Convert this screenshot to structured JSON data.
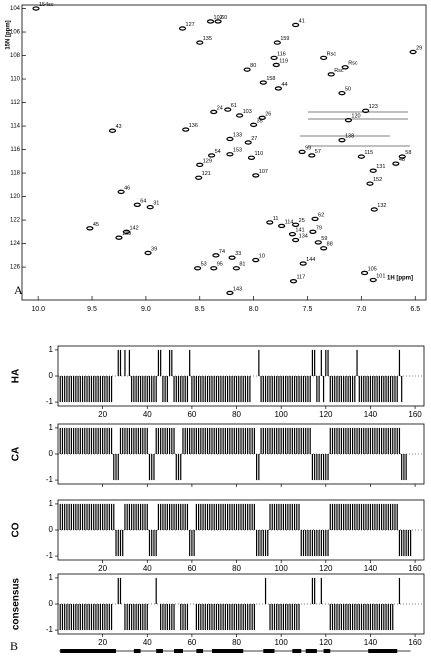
{
  "chart_data": [
    {
      "type": "scatter",
      "panel_label": "A",
      "ylabel": "15N [ppm]",
      "xlabel": "1H [ppm]",
      "xlim": [
        10.15,
        6.4
      ],
      "ylim": [
        103.7,
        128.8
      ],
      "xticks": [
        {
          "value": 10,
          "label": "10.0"
        },
        9.5,
        {
          "value": 9,
          "label": "9.0"
        },
        8.5,
        {
          "value": 8,
          "label": "8.0"
        },
        7.5,
        {
          "value": 7,
          "label": "7.0"
        },
        6.5
      ],
      "yticks": [
        104,
        106,
        108,
        110,
        112,
        114,
        116,
        118,
        120,
        122,
        124,
        126
      ],
      "color": "#000000",
      "peaks": {
        "labels": [
          "154sc",
          "127",
          "102",
          "60",
          "41",
          "135",
          "159",
          "29",
          "116",
          "119",
          "80",
          "Rsc",
          "Rsc",
          "Rsc",
          "158",
          "44",
          "50",
          "24",
          "61",
          "103",
          "26",
          "35",
          "123",
          "120",
          "136",
          "43",
          "133",
          "27",
          "138",
          "54",
          "153",
          "110",
          "99",
          "57",
          "115",
          "58",
          "48",
          "129",
          "107",
          "131",
          "152",
          "46",
          "121",
          "64",
          "31",
          "132",
          "45",
          "142",
          "139",
          "11",
          "114",
          "25",
          "62",
          "141",
          "79",
          "134",
          "59",
          "88",
          "39",
          "74",
          "33",
          "10",
          "144",
          "53",
          "95",
          "81",
          "105",
          "101",
          "117",
          "143"
        ],
        "x": [
          10.02,
          8.66,
          8.4,
          8.33,
          7.61,
          8.5,
          7.78,
          6.52,
          7.81,
          7.79,
          8.06,
          7.35,
          7.15,
          7.28,
          7.91,
          7.77,
          7.18,
          8.37,
          8.24,
          8.13,
          7.92,
          8.0,
          6.96,
          7.12,
          8.63,
          9.31,
          8.22,
          8.05,
          7.18,
          8.39,
          8.22,
          8.02,
          7.55,
          7.46,
          7.0,
          6.62,
          6.68,
          8.5,
          7.98,
          6.89,
          6.92,
          9.23,
          8.51,
          9.08,
          8.96,
          6.88,
          9.52,
          9.18,
          9.25,
          7.85,
          7.74,
          7.61,
          7.43,
          7.64,
          7.45,
          7.61,
          7.4,
          7.35,
          8.98,
          8.35,
          8.2,
          7.98,
          7.54,
          8.52,
          8.37,
          8.16,
          6.97,
          6.89,
          7.63,
          8.22
        ],
        "y": [
          104.0,
          105.7,
          105.1,
          105.1,
          105.4,
          106.9,
          106.9,
          107.7,
          108.2,
          108.8,
          109.2,
          108.2,
          109.0,
          109.6,
          110.3,
          110.8,
          111.2,
          112.8,
          112.6,
          113.1,
          113.3,
          113.9,
          112.7,
          113.5,
          114.3,
          114.4,
          115.1,
          115.4,
          115.2,
          116.5,
          116.4,
          116.7,
          116.2,
          116.5,
          116.6,
          116.6,
          117.2,
          117.3,
          118.2,
          117.8,
          118.9,
          119.6,
          118.4,
          120.7,
          120.9,
          121.1,
          122.7,
          123.0,
          123.5,
          122.2,
          122.5,
          122.4,
          121.9,
          123.2,
          123.0,
          123.7,
          123.9,
          124.4,
          124.8,
          125.0,
          125.2,
          125.4,
          125.7,
          126.1,
          126.1,
          126.1,
          126.5,
          127.1,
          127.2,
          128.2
        ]
      }
    },
    {
      "type": "bar",
      "panel_label": "B",
      "color": "#000000",
      "xlim": [
        0,
        164
      ],
      "xticks": [
        20,
        40,
        60,
        80,
        100,
        120,
        140,
        160
      ],
      "ylim": [
        -1.15,
        1.15
      ],
      "yticks": [
        -1,
        0,
        1
      ],
      "x": [
        1,
        2,
        3,
        4,
        5,
        6,
        7,
        8,
        9,
        10,
        11,
        12,
        13,
        14,
        15,
        16,
        17,
        18,
        19,
        20,
        21,
        22,
        23,
        24,
        25,
        26,
        27,
        28,
        29,
        30,
        31,
        32,
        33,
        34,
        35,
        36,
        37,
        38,
        39,
        40,
        41,
        42,
        43,
        44,
        45,
        46,
        47,
        48,
        49,
        50,
        51,
        52,
        53,
        54,
        55,
        56,
        57,
        58,
        59,
        60,
        61,
        62,
        63,
        64,
        65,
        66,
        67,
        68,
        69,
        70,
        71,
        72,
        73,
        74,
        75,
        76,
        77,
        78,
        79,
        80,
        81,
        82,
        83,
        84,
        85,
        86,
        87,
        88,
        89,
        90,
        91,
        92,
        93,
        94,
        95,
        96,
        97,
        98,
        99,
        100,
        101,
        102,
        103,
        104,
        105,
        106,
        107,
        108,
        109,
        110,
        111,
        112,
        113,
        114,
        115,
        116,
        117,
        118,
        119,
        120,
        121,
        122,
        123,
        124,
        125,
        126,
        127,
        128,
        129,
        130,
        131,
        132,
        133,
        134,
        135,
        136,
        137,
        138,
        139,
        140,
        141,
        142,
        143,
        144,
        145,
        146,
        147,
        148,
        149,
        150,
        151,
        152,
        153,
        154,
        155,
        156,
        157,
        158
      ],
      "panels": [
        {
          "name": "HA",
          "show_xticks": true,
          "values": [
            -1,
            -1,
            -1,
            -1,
            -1,
            -1,
            -1,
            -1,
            -1,
            -1,
            -1,
            -1,
            -1,
            -1,
            -1,
            -1,
            -1,
            -1,
            -1,
            -1,
            -1,
            -1,
            -1,
            -1,
            0,
            0,
            1,
            1,
            0,
            1,
            0,
            1,
            -1,
            -1,
            -1,
            -1,
            -1,
            -1,
            -1,
            -1,
            -1,
            -1,
            -1,
            -1,
            1,
            1,
            -1,
            -1,
            -1,
            1,
            1,
            -1,
            -1,
            -1,
            -1,
            -1,
            -1,
            -1,
            1,
            -1,
            -1,
            -1,
            -1,
            -1,
            -1,
            -1,
            -1,
            -1,
            -1,
            -1,
            -1,
            -1,
            -1,
            -1,
            -1,
            -1,
            -1,
            -1,
            -1,
            -1,
            -1,
            -1,
            -1,
            -1,
            -1,
            -1,
            0,
            0,
            0,
            1,
            -1,
            -1,
            -1,
            -1,
            -1,
            -1,
            -1,
            -1,
            -1,
            -1,
            -1,
            -1,
            -1,
            -1,
            -1,
            -1,
            -1,
            -1,
            -1,
            -1,
            -1,
            -1,
            -1,
            1,
            1,
            -1,
            -1,
            1,
            -1,
            1,
            1,
            -1,
            -1,
            -1,
            -1,
            -1,
            -1,
            -1,
            -1,
            -1,
            -1,
            -1,
            -1,
            1,
            -1,
            -1,
            -1,
            -1,
            -1,
            -1,
            -1,
            -1,
            -1,
            -1,
            -1,
            -1,
            -1,
            -1,
            -1,
            -1,
            -1,
            -1,
            1,
            -1,
            0,
            0,
            0,
            0
          ]
        },
        {
          "name": "CA",
          "show_xticks": false,
          "values": [
            1,
            1,
            1,
            1,
            1,
            1,
            1,
            1,
            1,
            1,
            1,
            1,
            1,
            1,
            1,
            1,
            1,
            1,
            1,
            1,
            1,
            1,
            1,
            1,
            -1,
            -1,
            -1,
            1,
            1,
            1,
            1,
            1,
            1,
            1,
            1,
            1,
            1,
            1,
            1,
            1,
            -1,
            -1,
            -1,
            1,
            1,
            1,
            1,
            1,
            1,
            1,
            1,
            1,
            -1,
            -1,
            -1,
            1,
            1,
            1,
            1,
            1,
            1,
            1,
            1,
            1,
            1,
            1,
            1,
            1,
            1,
            1,
            1,
            1,
            1,
            1,
            1,
            1,
            1,
            1,
            1,
            1,
            1,
            1,
            1,
            1,
            1,
            1,
            1,
            1,
            -1,
            -1,
            1,
            1,
            1,
            1,
            1,
            1,
            1,
            1,
            1,
            1,
            1,
            1,
            1,
            1,
            1,
            1,
            1,
            1,
            1,
            1,
            1,
            1,
            1,
            -1,
            -1,
            -1,
            -1,
            -1,
            -1,
            -1,
            -1,
            1,
            1,
            1,
            1,
            1,
            1,
            1,
            1,
            1,
            1,
            1,
            1,
            1,
            1,
            1,
            1,
            1,
            1,
            1,
            1,
            1,
            1,
            1,
            1,
            1,
            1,
            1,
            1,
            1,
            1,
            1,
            1,
            -1,
            -1,
            -1,
            0,
            0
          ]
        },
        {
          "name": "CO",
          "show_xticks": true,
          "values": [
            1,
            1,
            1,
            1,
            1,
            1,
            1,
            1,
            1,
            1,
            1,
            1,
            1,
            1,
            1,
            1,
            1,
            1,
            1,
            1,
            1,
            1,
            1,
            1,
            1,
            -1,
            -1,
            -1,
            -1,
            1,
            1,
            1,
            1,
            1,
            1,
            1,
            1,
            1,
            1,
            1,
            -1,
            -1,
            -1,
            -1,
            1,
            1,
            1,
            1,
            1,
            1,
            1,
            1,
            1,
            1,
            1,
            1,
            1,
            1,
            -1,
            -1,
            -1,
            1,
            1,
            1,
            1,
            1,
            1,
            1,
            1,
            1,
            1,
            1,
            1,
            1,
            1,
            1,
            1,
            1,
            1,
            1,
            1,
            1,
            1,
            1,
            1,
            1,
            1,
            1,
            -1,
            -1,
            -1,
            -1,
            -1,
            -1,
            1,
            1,
            1,
            1,
            1,
            1,
            1,
            1,
            1,
            1,
            1,
            1,
            1,
            1,
            -1,
            -1,
            -1,
            -1,
            -1,
            -1,
            -1,
            -1,
            -1,
            -1,
            -1,
            -1,
            -1,
            1,
            1,
            1,
            1,
            1,
            1,
            1,
            1,
            1,
            1,
            1,
            1,
            1,
            1,
            1,
            1,
            1,
            1,
            1,
            1,
            1,
            1,
            1,
            1,
            1,
            1,
            1,
            1,
            1,
            1,
            1,
            -1,
            -1,
            -1,
            -1,
            -1,
            -1
          ]
        },
        {
          "name": "consensus",
          "show_xticks": true,
          "values": [
            -1,
            -1,
            -1,
            -1,
            -1,
            -1,
            -1,
            -1,
            -1,
            -1,
            -1,
            -1,
            -1,
            -1,
            -1,
            -1,
            -1,
            -1,
            -1,
            -1,
            -1,
            -1,
            -1,
            -1,
            0,
            0,
            1,
            1,
            0,
            -1,
            -1,
            -1,
            -1,
            -1,
            -1,
            -1,
            -1,
            -1,
            -1,
            -1,
            0,
            0,
            0,
            1,
            0,
            -1,
            -1,
            -1,
            -1,
            -1,
            -1,
            -1,
            0,
            0,
            -1,
            -1,
            -1,
            -1,
            0,
            0,
            0,
            -1,
            -1,
            -1,
            -1,
            -1,
            -1,
            -1,
            -1,
            -1,
            -1,
            -1,
            -1,
            -1,
            -1,
            -1,
            -1,
            -1,
            -1,
            -1,
            -1,
            -1,
            -1,
            -1,
            -1,
            -1,
            -1,
            -1,
            0,
            0,
            0,
            0,
            1,
            0,
            -1,
            -1,
            -1,
            -1,
            -1,
            -1,
            -1,
            -1,
            -1,
            -1,
            -1,
            -1,
            -1,
            -1,
            0,
            0,
            0,
            0,
            0,
            1,
            1,
            0,
            0,
            1,
            0,
            0,
            0,
            -1,
            -1,
            -1,
            -1,
            -1,
            -1,
            -1,
            -1,
            -1,
            -1,
            -1,
            -1,
            -1,
            -1,
            -1,
            -1,
            -1,
            -1,
            -1,
            -1,
            -1,
            -1,
            -1,
            -1,
            -1,
            -1,
            -1,
            -1,
            -1,
            0,
            0,
            1,
            0,
            0,
            0,
            0,
            0
          ]
        }
      ],
      "structure": [
        [
          1,
          26
        ],
        [
          34,
          37
        ],
        [
          44,
          47
        ],
        [
          52,
          56
        ],
        [
          62,
          65
        ],
        [
          69,
          83
        ],
        [
          92,
          97
        ],
        [
          105,
          109
        ],
        [
          111,
          116
        ],
        [
          119,
          122
        ],
        [
          139,
          152
        ]
      ]
    }
  ]
}
